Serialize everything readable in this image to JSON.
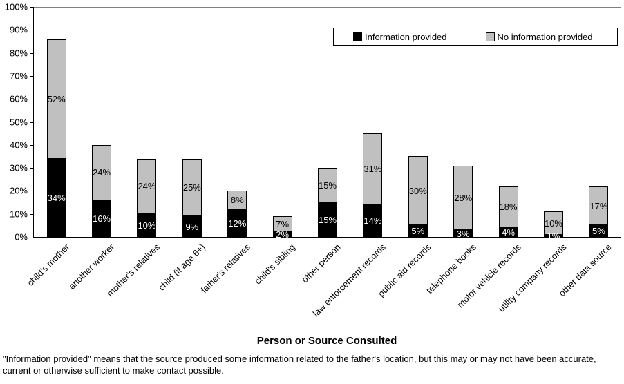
{
  "chart_data": {
    "type": "bar",
    "stacked": true,
    "title": "",
    "xlabel": "Person or Source Consulted",
    "ylabel": "",
    "ylim": [
      0,
      100
    ],
    "ytick_step": 10,
    "yticks": [
      "0%",
      "10%",
      "20%",
      "30%",
      "40%",
      "50%",
      "60%",
      "70%",
      "80%",
      "90%",
      "100%"
    ],
    "grid": false,
    "legend_position": "top-right",
    "axis_color": "#000000",
    "topline_color": "#808080",
    "categories": [
      "child's mother",
      "another worker",
      "mother's relatives",
      "child (if age 6+)",
      "father's relatives",
      "child's sibling",
      "other person",
      "law enforcement records",
      "public aid records",
      "telephone books",
      "motor vehicle records",
      "utility company records",
      "other data source"
    ],
    "series": [
      {
        "name": "Information provided",
        "color": "#000000",
        "label_text_color": "#ffffff",
        "values": [
          34,
          16,
          10,
          9,
          12,
          2,
          15,
          14,
          5,
          3,
          4,
          1,
          5
        ]
      },
      {
        "name": "No information provided",
        "color": "#c0c0c0",
        "label_text_color": "#000000",
        "values": [
          52,
          24,
          24,
          25,
          8,
          7,
          15,
          31,
          30,
          28,
          18,
          10,
          17
        ]
      }
    ]
  },
  "footnote": "\"Information provided\" means that the source produced some information related to the father's location, but this may or may not have been accurate, current or otherwise sufficient to make contact possible."
}
